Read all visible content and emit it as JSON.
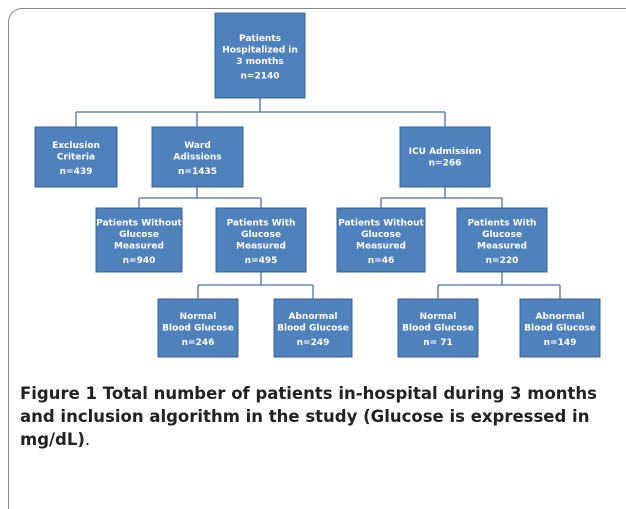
{
  "nodes": [
    {
      "lines": [
        "Patients",
        "Hospitalized in",
        "3 months",
        "n=2140"
      ]
    },
    {
      "lines": [
        "Exclusion",
        "Criteria",
        "n=439"
      ]
    },
    {
      "lines": [
        "Ward",
        "Adissions",
        "n=1435"
      ]
    },
    {
      "lines": [
        "ICU Admission",
        "n=266"
      ]
    },
    {
      "lines": [
        "Patients Without",
        "Glucose",
        "Measured",
        "n=940"
      ]
    },
    {
      "lines": [
        "Patients With",
        "Glucose",
        "Measured",
        "n=495"
      ]
    },
    {
      "lines": [
        "Patients Without",
        "Glucose",
        "Measured",
        "n=46"
      ]
    },
    {
      "lines": [
        "Patients With",
        "Glucose",
        "Measured",
        "n=220"
      ]
    },
    {
      "lines": [
        "Normal",
        "Blood Glucose",
        "n=246"
      ]
    },
    {
      "lines": [
        "Abnormal",
        "Blood Glucose",
        "n=249"
      ]
    },
    {
      "lines": [
        "Normal",
        "Blood Glucose",
        "n= 71"
      ]
    },
    {
      "lines": [
        "Abnormal",
        "Blood Glucose",
        "n=149"
      ]
    }
  ],
  "caption": {
    "label": "Figure 1",
    "text": "Total number of patients in-hospital during 3 months and inclusion algorithm in the study (Glucose is expressed in mg/dL)",
    "end": "."
  }
}
